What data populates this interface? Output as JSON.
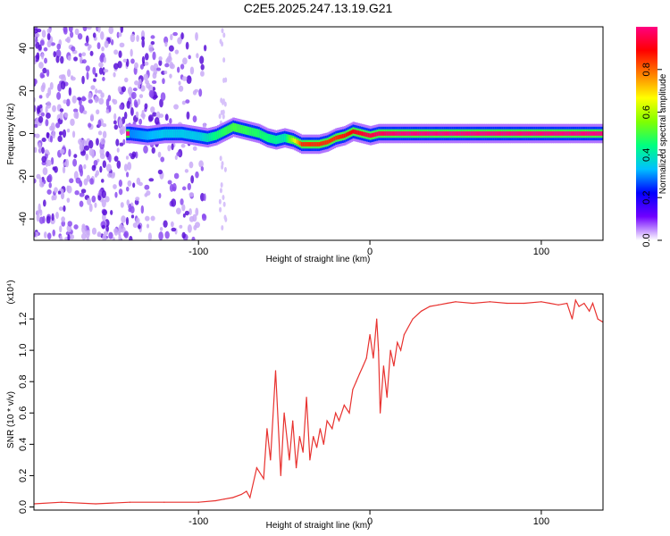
{
  "title": "C2E5.2025.247.13.19.G21",
  "colors": {
    "snr_line": "#e8322f",
    "spectrogram_scatter": "#7a2be0",
    "axis": "#000000"
  },
  "chart_data": [
    {
      "type": "heatmap",
      "name": "spectrogram",
      "xlabel": "Height of straight line (km)",
      "ylabel": "Frequency (Hz)",
      "xlim": [
        -196,
        136
      ],
      "ylim": [
        -50,
        50
      ],
      "x_ticks": [
        -100,
        0,
        100
      ],
      "x_tick_labels": [
        "-100",
        "0",
        "100"
      ],
      "y_ticks": [
        -40,
        -20,
        0,
        20,
        40
      ],
      "y_tick_labels": [
        "-40",
        "-20",
        "0",
        "20",
        "40"
      ],
      "colorbar": {
        "label": "Normalized spectral amplitude",
        "range": [
          0,
          1
        ],
        "ticks": [
          0.0,
          0.2,
          0.4,
          0.6,
          0.8
        ],
        "tick_labels": [
          "0.0",
          "0.2",
          "0.4",
          "0.6",
          "0.8"
        ],
        "colormap": [
          "#ffffff",
          "#7000ff",
          "#0000ff",
          "#00c0ff",
          "#00ff80",
          "#80ff00",
          "#ffff00",
          "#ff8000",
          "#ff0000",
          "#ff0080"
        ]
      },
      "signal_trace": [
        {
          "x": -140,
          "y": 0
        },
        {
          "x": -130,
          "y": -1
        },
        {
          "x": -120,
          "y": 0
        },
        {
          "x": -110,
          "y": 0
        },
        {
          "x": -95,
          "y": -2
        },
        {
          "x": -90,
          "y": -1
        },
        {
          "x": -85,
          "y": 1
        },
        {
          "x": -80,
          "y": 3
        },
        {
          "x": -75,
          "y": 2
        },
        {
          "x": -70,
          "y": 1
        },
        {
          "x": -65,
          "y": 0
        },
        {
          "x": -60,
          "y": -2
        },
        {
          "x": -55,
          "y": -3
        },
        {
          "x": -50,
          "y": -2
        },
        {
          "x": -45,
          "y": -3
        },
        {
          "x": -40,
          "y": -5
        },
        {
          "x": -35,
          "y": -5
        },
        {
          "x": -30,
          "y": -5
        },
        {
          "x": -25,
          "y": -4
        },
        {
          "x": -20,
          "y": -2
        },
        {
          "x": -15,
          "y": -1
        },
        {
          "x": -10,
          "y": 1
        },
        {
          "x": -5,
          "y": 0
        },
        {
          "x": 0,
          "y": -1
        },
        {
          "x": 5,
          "y": 0
        },
        {
          "x": 10,
          "y": 0
        },
        {
          "x": 20,
          "y": 0
        },
        {
          "x": 40,
          "y": 0
        },
        {
          "x": 60,
          "y": 0
        },
        {
          "x": 80,
          "y": 0
        },
        {
          "x": 100,
          "y": 0
        },
        {
          "x": 120,
          "y": 0
        },
        {
          "x": 136,
          "y": 0
        }
      ],
      "signal_amplitude": [
        {
          "x": -140,
          "v": 0.3
        },
        {
          "x": -120,
          "v": 0.35
        },
        {
          "x": -100,
          "v": 0.35
        },
        {
          "x": -90,
          "v": 0.45
        },
        {
          "x": -80,
          "v": 0.5
        },
        {
          "x": -60,
          "v": 0.45
        },
        {
          "x": -50,
          "v": 0.4
        },
        {
          "x": -40,
          "v": 0.85
        },
        {
          "x": -30,
          "v": 0.85
        },
        {
          "x": -20,
          "v": 0.85
        },
        {
          "x": -10,
          "v": 0.9
        },
        {
          "x": 0,
          "v": 0.95
        },
        {
          "x": 20,
          "v": 1.0
        },
        {
          "x": 60,
          "v": 1.0
        },
        {
          "x": 100,
          "v": 1.0
        },
        {
          "x": 136,
          "v": 1.0
        }
      ]
    },
    {
      "type": "line",
      "name": "snr",
      "xlabel": "Height of straight line (km)",
      "ylabel": "SNR (10 * v/v)",
      "y_multiplier": "(x10⁴)",
      "xlim": [
        -196,
        136
      ],
      "ylim": [
        -0.02,
        1.36
      ],
      "x_ticks": [
        -100,
        0,
        100
      ],
      "x_tick_labels": [
        "-100",
        "0",
        "100"
      ],
      "y_ticks": [
        0.0,
        0.2,
        0.4,
        0.6,
        0.8,
        1.0,
        1.2
      ],
      "y_tick_labels": [
        "0.0",
        "0.2",
        "0.4",
        "0.6",
        "0.8",
        "1.0",
        "1.2"
      ],
      "series": [
        {
          "name": "SNR",
          "x": [
            -196,
            -180,
            -160,
            -140,
            -120,
            -100,
            -90,
            -85,
            -80,
            -75,
            -72,
            -70,
            -66,
            -62,
            -60,
            -58,
            -55,
            -52,
            -50,
            -47,
            -45,
            -43,
            -41,
            -39,
            -37,
            -35,
            -33,
            -31,
            -29,
            -27,
            -25,
            -22,
            -20,
            -18,
            -15,
            -12,
            -10,
            -8,
            -6,
            -4,
            -2,
            0,
            2,
            4,
            5,
            6,
            8,
            10,
            12,
            14,
            16,
            18,
            20,
            25,
            30,
            35,
            40,
            45,
            50,
            60,
            70,
            80,
            90,
            100,
            105,
            110,
            115,
            118,
            120,
            122,
            125,
            128,
            130,
            133,
            136
          ],
          "y": [
            0.02,
            0.03,
            0.02,
            0.03,
            0.03,
            0.03,
            0.04,
            0.05,
            0.06,
            0.08,
            0.1,
            0.06,
            0.25,
            0.18,
            0.5,
            0.3,
            0.87,
            0.2,
            0.6,
            0.3,
            0.55,
            0.25,
            0.45,
            0.35,
            0.7,
            0.3,
            0.45,
            0.38,
            0.5,
            0.4,
            0.55,
            0.5,
            0.6,
            0.55,
            0.65,
            0.6,
            0.75,
            0.8,
            0.85,
            0.9,
            0.95,
            1.1,
            0.95,
            1.2,
            1.0,
            0.6,
            0.9,
            0.7,
            1.0,
            0.9,
            1.05,
            1.0,
            1.1,
            1.2,
            1.25,
            1.28,
            1.29,
            1.3,
            1.31,
            1.3,
            1.31,
            1.3,
            1.3,
            1.31,
            1.3,
            1.29,
            1.3,
            1.2,
            1.32,
            1.28,
            1.3,
            1.25,
            1.3,
            1.2,
            1.18
          ]
        }
      ]
    }
  ]
}
